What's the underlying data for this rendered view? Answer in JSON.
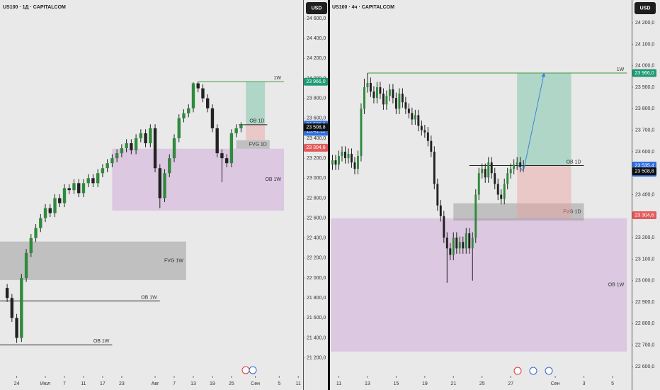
{
  "chart_data": [
    {
      "type": "candlestick",
      "title": "US100 · 1Д · CAPITALCOM",
      "currency": "USD",
      "xlim": [
        -1.5,
        62
      ],
      "ylim": [
        21020,
        24785
      ],
      "xticks": [
        {
          "value": 2,
          "label": "24"
        },
        {
          "value": 8,
          "label": "Июл"
        },
        {
          "value": 12,
          "label": "7"
        },
        {
          "value": 16,
          "label": "11"
        },
        {
          "value": 20,
          "label": "17"
        },
        {
          "value": 24,
          "label": "23"
        },
        {
          "value": 31,
          "label": "Авг"
        },
        {
          "value": 35,
          "label": "7"
        },
        {
          "value": 39,
          "label": "13"
        },
        {
          "value": 43,
          "label": "19"
        },
        {
          "value": 47,
          "label": "25"
        },
        {
          "value": 52,
          "label": "Сен"
        },
        {
          "value": 57,
          "label": "5"
        },
        {
          "value": 61,
          "label": "11"
        }
      ],
      "yticks": [
        {
          "value": 21200,
          "label": "21 200,0"
        },
        {
          "value": 21400,
          "label": "21 400,0"
        },
        {
          "value": 21600,
          "label": "21 600,0"
        },
        {
          "value": 21800,
          "label": "21 800,0"
        },
        {
          "value": 22000,
          "label": "22 000,0"
        },
        {
          "value": 22200,
          "label": "22 200,0"
        },
        {
          "value": 22400,
          "label": "22 400,0"
        },
        {
          "value": 22600,
          "label": "22 600,0"
        },
        {
          "value": 22800,
          "label": "22 800,0"
        },
        {
          "value": 23000,
          "label": "23 000,0"
        },
        {
          "value": 23200,
          "label": "23 200,0"
        },
        {
          "value": 23400,
          "label": "23 400,0"
        },
        {
          "value": 23600,
          "label": "23 600,0"
        },
        {
          "value": 23800,
          "label": "23 800,0"
        },
        {
          "value": 24000,
          "label": "24 000,0"
        },
        {
          "value": 24200,
          "label": "24 200,0"
        },
        {
          "value": 24400,
          "label": "24 400,0"
        },
        {
          "value": 24600,
          "label": "24 600,0"
        }
      ],
      "up_color": "#2f8a3b",
      "down_color": "#222222",
      "ohlc": {
        "open": [
          21900,
          21800,
          21600,
          21400,
          22000,
          22250,
          22400,
          22500,
          22600,
          22700,
          22650,
          22800,
          22750,
          22900,
          22880,
          22950,
          22850,
          22950,
          23000,
          22950,
          23050,
          23100,
          23150,
          23200,
          23250,
          23300,
          23350,
          23280,
          23400,
          23450,
          23350,
          23500,
          23100,
          22800,
          23050,
          23200,
          23400,
          23600,
          23650,
          23700,
          23950,
          23900,
          23800,
          23700,
          23500,
          23250,
          23200,
          23150,
          23450,
          23500
        ],
        "high": [
          21940,
          21840,
          21640,
          22040,
          22290,
          22440,
          22540,
          22640,
          22740,
          22740,
          22840,
          22840,
          22940,
          22940,
          22990,
          22990,
          22990,
          23040,
          23040,
          23090,
          23140,
          23190,
          23240,
          23290,
          23340,
          23390,
          23390,
          23440,
          23490,
          23490,
          23540,
          23540,
          23140,
          23090,
          23240,
          23440,
          23640,
          23690,
          23740,
          23960,
          23966,
          23940,
          23840,
          23740,
          23540,
          23290,
          23240,
          23490,
          23540,
          23560
        ],
        "low": [
          21760,
          21560,
          21350,
          21360,
          21960,
          22210,
          22360,
          22460,
          22560,
          22610,
          22610,
          22710,
          22710,
          22840,
          22840,
          22810,
          22810,
          22910,
          22910,
          22910,
          23010,
          23060,
          23110,
          23160,
          23210,
          23260,
          23240,
          23240,
          23360,
          23310,
          23310,
          23060,
          22700,
          22760,
          23010,
          23160,
          23360,
          23560,
          23610,
          23660,
          23860,
          23760,
          23660,
          23460,
          23210,
          22960,
          23110,
          23110,
          23410,
          23460
        ],
        "close": [
          21800,
          21600,
          21400,
          22000,
          22250,
          22400,
          22500,
          22600,
          22700,
          22650,
          22800,
          22750,
          22900,
          22880,
          22950,
          22850,
          22950,
          23000,
          22950,
          23050,
          23100,
          23150,
          23200,
          23250,
          23300,
          23350,
          23280,
          23400,
          23450,
          23350,
          23500,
          23100,
          22800,
          23050,
          23200,
          23400,
          23600,
          23650,
          23700,
          23950,
          23900,
          23800,
          23700,
          23500,
          23250,
          23200,
          23150,
          23450,
          23500,
          23535.6
        ]
      },
      "zones": [
        {
          "label": "OB 1W",
          "top": 23295,
          "bottom": 22675,
          "x": [
            22,
            58
          ],
          "color": "rgba(205,160,215,0.45)"
        },
        {
          "label": "FVG 1W",
          "top": 22365,
          "bottom": 21980,
          "x": [
            -1.5,
            37.5
          ],
          "color": "rgba(130,130,130,0.4)"
        },
        {
          "label": "FVG 1D",
          "top": 23380,
          "bottom": 23295,
          "x": [
            48,
            55
          ],
          "color": "rgba(130,130,130,0.4)"
        },
        {
          "top": 23966,
          "bottom": 23535.6,
          "x": [
            50,
            54
          ],
          "color": "rgba(90,185,150,0.4)"
        },
        {
          "top": 23535.6,
          "bottom": 23380,
          "x": [
            50,
            54
          ],
          "color": "rgba(235,160,160,0.45)"
        }
      ],
      "lines": [
        {
          "label": "1W",
          "y": 23966,
          "x": [
            40,
            58
          ],
          "color": "#3c9a3c"
        },
        {
          "label": "OB 1D",
          "y": 23535.6,
          "x": [
            48.5,
            54.5
          ],
          "color": "#222222"
        },
        {
          "label": "OB 1W",
          "y": 21770,
          "x": [
            -1.5,
            32
          ],
          "color": "#222222"
        },
        {
          "label": "OB 1W",
          "y": 21330,
          "x": [
            -1.5,
            22
          ],
          "color": "#222222"
        }
      ],
      "price_labels": [
        {
          "value": 23966,
          "label": "23 966,0",
          "color": "#1f9a74"
        },
        {
          "value": 23535.6,
          "label": "23 535,6",
          "sublabel": "13:41:11",
          "color": "#2f6fe0"
        },
        {
          "value": 23508.8,
          "label": "23 508,8",
          "color": "#111111"
        },
        {
          "value": 23304.6,
          "label": "23 304,6",
          "color": "#e25b5b"
        }
      ]
    },
    {
      "type": "candlestick",
      "title": "US100 · 4ч · CAPITALCOM",
      "currency": "USD",
      "xlim": [
        -1,
        94
      ],
      "ylim": [
        22557,
        24306
      ],
      "xticks": [
        {
          "value": 2,
          "label": "11"
        },
        {
          "value": 11,
          "label": "13"
        },
        {
          "value": 20,
          "label": "15"
        },
        {
          "value": 29,
          "label": "19"
        },
        {
          "value": 38,
          "label": "21"
        },
        {
          "value": 47,
          "label": "25"
        },
        {
          "value": 56,
          "label": "27"
        },
        {
          "value": 70,
          "label": "Сен"
        },
        {
          "value": 79,
          "label": "3"
        },
        {
          "value": 88,
          "label": "5"
        }
      ],
      "yticks": [
        {
          "value": 22600,
          "label": "22 600,0"
        },
        {
          "value": 22700,
          "label": "22 700,0"
        },
        {
          "value": 22800,
          "label": "22 800,0"
        },
        {
          "value": 22900,
          "label": "22 900,0"
        },
        {
          "value": 23000,
          "label": "23 000,0"
        },
        {
          "value": 23100,
          "label": "23 100,0"
        },
        {
          "value": 23200,
          "label": "23 200,0"
        },
        {
          "value": 23300,
          "label": "23 300,0"
        },
        {
          "value": 23400,
          "label": "23 400,0"
        },
        {
          "value": 23500,
          "label": "23 500,0"
        },
        {
          "value": 23600,
          "label": "23 600,0"
        },
        {
          "value": 23700,
          "label": "23 700,0"
        },
        {
          "value": 23800,
          "label": "23 800,0"
        },
        {
          "value": 23900,
          "label": "23 900,0"
        },
        {
          "value": 24000,
          "label": "24 000,0"
        },
        {
          "value": 24100,
          "label": "24 100,0"
        },
        {
          "value": 24200,
          "label": "24 200,0"
        }
      ],
      "up_color": "#2f8a3b",
      "down_color": "#222222",
      "ohlc": {
        "open": [
          23540,
          23560,
          23540,
          23580,
          23600,
          23570,
          23590,
          23550,
          23520,
          23580,
          23800,
          23900,
          23920,
          23880,
          23850,
          23900,
          23870,
          23820,
          23860,
          23890,
          23850,
          23800,
          23870,
          23830,
          23800,
          23780,
          23750,
          23770,
          23720,
          23700,
          23690,
          23650,
          23600,
          23450,
          23350,
          23300,
          23200,
          23150,
          23120,
          23200,
          23150,
          23180,
          23150,
          23220,
          23150,
          23200,
          23400,
          23500,
          23520,
          23480,
          23550,
          23500,
          23450,
          23400,
          23380,
          23450,
          23500,
          23520,
          23540,
          23550,
          23530
        ],
        "high": [
          23585,
          23585,
          23605,
          23625,
          23625,
          23615,
          23615,
          23575,
          23605,
          23825,
          23940,
          23966,
          23945,
          23905,
          23925,
          23925,
          23895,
          23885,
          23915,
          23915,
          23875,
          23895,
          23895,
          23855,
          23825,
          23805,
          23795,
          23795,
          23745,
          23725,
          23715,
          23675,
          23625,
          23475,
          23375,
          23325,
          23225,
          23175,
          23225,
          23225,
          23205,
          23205,
          23245,
          23245,
          23225,
          23425,
          23525,
          23545,
          23545,
          23575,
          23575,
          23525,
          23475,
          23425,
          23475,
          23525,
          23545,
          23565,
          23575,
          23575,
          23560
        ],
        "low": [
          23515,
          23515,
          23515,
          23555,
          23545,
          23545,
          23525,
          23495,
          23495,
          23555,
          23775,
          23875,
          23855,
          23825,
          23825,
          23845,
          23795,
          23795,
          23835,
          23825,
          23775,
          23775,
          23805,
          23775,
          23755,
          23725,
          23725,
          23695,
          23675,
          23665,
          23625,
          23575,
          23425,
          23325,
          23275,
          23175,
          22990,
          23095,
          23095,
          23125,
          23125,
          23125,
          23125,
          23125,
          23000,
          23175,
          23375,
          23475,
          23455,
          23455,
          23475,
          23425,
          23375,
          23355,
          23355,
          23425,
          23475,
          23495,
          23515,
          23505,
          23505
        ],
        "close": [
          23560,
          23540,
          23580,
          23600,
          23570,
          23590,
          23550,
          23520,
          23580,
          23800,
          23900,
          23920,
          23880,
          23850,
          23900,
          23870,
          23820,
          23860,
          23890,
          23850,
          23800,
          23870,
          23830,
          23800,
          23780,
          23750,
          23770,
          23720,
          23700,
          23690,
          23650,
          23600,
          23450,
          23350,
          23300,
          23200,
          23150,
          23120,
          23200,
          23150,
          23180,
          23150,
          23220,
          23150,
          23200,
          23400,
          23500,
          23520,
          23480,
          23550,
          23500,
          23450,
          23400,
          23380,
          23450,
          23500,
          23520,
          23540,
          23550,
          23530,
          23535.4
        ]
      },
      "zones": [
        {
          "label": "OB 1W",
          "top": 23290,
          "bottom": 22670,
          "x": [
            -0.5,
            92.5
          ],
          "color": "rgba(205,160,215,0.45)"
        },
        {
          "label": "FVG 1D",
          "top": 23360,
          "bottom": 23280,
          "x": [
            38,
            79
          ],
          "color": "rgba(130,130,130,0.4)"
        },
        {
          "top": 23966,
          "bottom": 23535.4,
          "x": [
            58,
            75
          ],
          "color": "rgba(90,185,150,0.4)"
        },
        {
          "top": 23535.4,
          "bottom": 23290,
          "x": [
            58,
            75
          ],
          "color": "rgba(235,160,160,0.45)"
        }
      ],
      "lines": [
        {
          "label": "1W",
          "y": 23966,
          "x": [
            11,
            92.5
          ],
          "color": "#3c9a3c"
        },
        {
          "label": "OB 1D",
          "y": 23535.4,
          "x": [
            43,
            79
          ],
          "color": "#222222"
        }
      ],
      "projection": {
        "x": [
          58,
          60,
          66.5
        ],
        "y": [
          23540,
          23510,
          23966
        ],
        "color": "#3a86d8"
      },
      "price_labels": [
        {
          "value": 23966,
          "label": "23 966,0",
          "color": "#1f9a74"
        },
        {
          "value": 23535.4,
          "label": "23 535,4",
          "sublabel": "01:41:11",
          "color": "#2f6fe0"
        },
        {
          "value": 23508.8,
          "label": "23 508,8",
          "color": "#111111"
        },
        {
          "value": 23304.6,
          "label": "23 304,6",
          "color": "#e25b5b"
        }
      ]
    }
  ]
}
